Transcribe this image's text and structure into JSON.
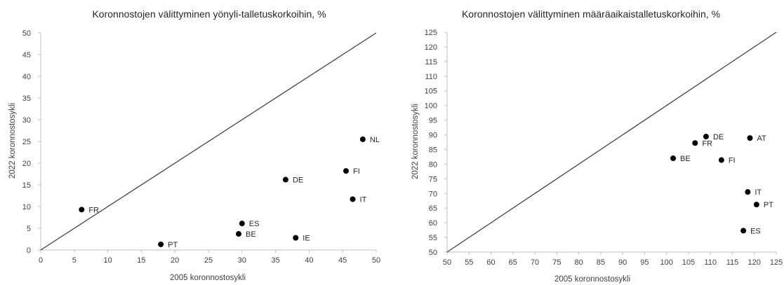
{
  "chart_data": [
    {
      "type": "scatter",
      "title": "Koronnostojen välittyminen yönyli-talletuskorkoihin, %",
      "xlabel": "2005 koronnostosykli",
      "ylabel": "2022 koronnostosykli",
      "xlim": [
        0,
        50
      ],
      "ylim": [
        0,
        50
      ],
      "xticks": [
        "0",
        "5",
        "10",
        "15",
        "20",
        "25",
        "30",
        "35",
        "40",
        "45",
        "50"
      ],
      "yticks": [
        "0",
        "5",
        "10",
        "15",
        "20",
        "25",
        "30",
        "35",
        "40",
        "45",
        "50"
      ],
      "diagonal": true,
      "grid": false,
      "points": [
        {
          "label": "FR",
          "x": 6.1,
          "y": 9.3
        },
        {
          "label": "PT",
          "x": 17.9,
          "y": 1.3
        },
        {
          "label": "BE",
          "x": 29.5,
          "y": 3.7
        },
        {
          "label": "ES",
          "x": 30.0,
          "y": 6.1
        },
        {
          "label": "DE",
          "x": 36.5,
          "y": 16.2
        },
        {
          "label": "IE",
          "x": 38.0,
          "y": 2.8
        },
        {
          "label": "FI",
          "x": 45.5,
          "y": 18.2
        },
        {
          "label": "IT",
          "x": 46.5,
          "y": 11.7
        },
        {
          "label": "NL",
          "x": 48.0,
          "y": 25.5
        }
      ]
    },
    {
      "type": "scatter",
      "title": "Koronnostojen välittyminen määräaikaistalletuskorkoihin, %",
      "xlabel": "2005 koronnostosykli",
      "ylabel": "2022 koronnostosykli",
      "xlim": [
        50,
        125
      ],
      "ylim": [
        50,
        125
      ],
      "xticks": [
        "50",
        "55",
        "60",
        "65",
        "70",
        "75",
        "80",
        "85",
        "90",
        "95",
        "100",
        "105",
        "110",
        "115",
        "120",
        "125"
      ],
      "yticks": [
        "50",
        "55",
        "60",
        "65",
        "70",
        "75",
        "80",
        "85",
        "90",
        "95",
        "100",
        "105",
        "110",
        "115",
        "120",
        "125"
      ],
      "diagonal": true,
      "grid": false,
      "points": [
        {
          "label": "BE",
          "x": 101.5,
          "y": 82.0
        },
        {
          "label": "FR",
          "x": 106.5,
          "y": 87.2
        },
        {
          "label": "DE",
          "x": 109.0,
          "y": 89.4
        },
        {
          "label": "FI",
          "x": 112.5,
          "y": 81.4
        },
        {
          "label": "AT",
          "x": 119.0,
          "y": 88.9
        },
        {
          "label": "IT",
          "x": 118.5,
          "y": 70.5
        },
        {
          "label": "PT",
          "x": 120.5,
          "y": 66.2
        },
        {
          "label": "ES",
          "x": 117.5,
          "y": 57.3
        }
      ]
    }
  ]
}
